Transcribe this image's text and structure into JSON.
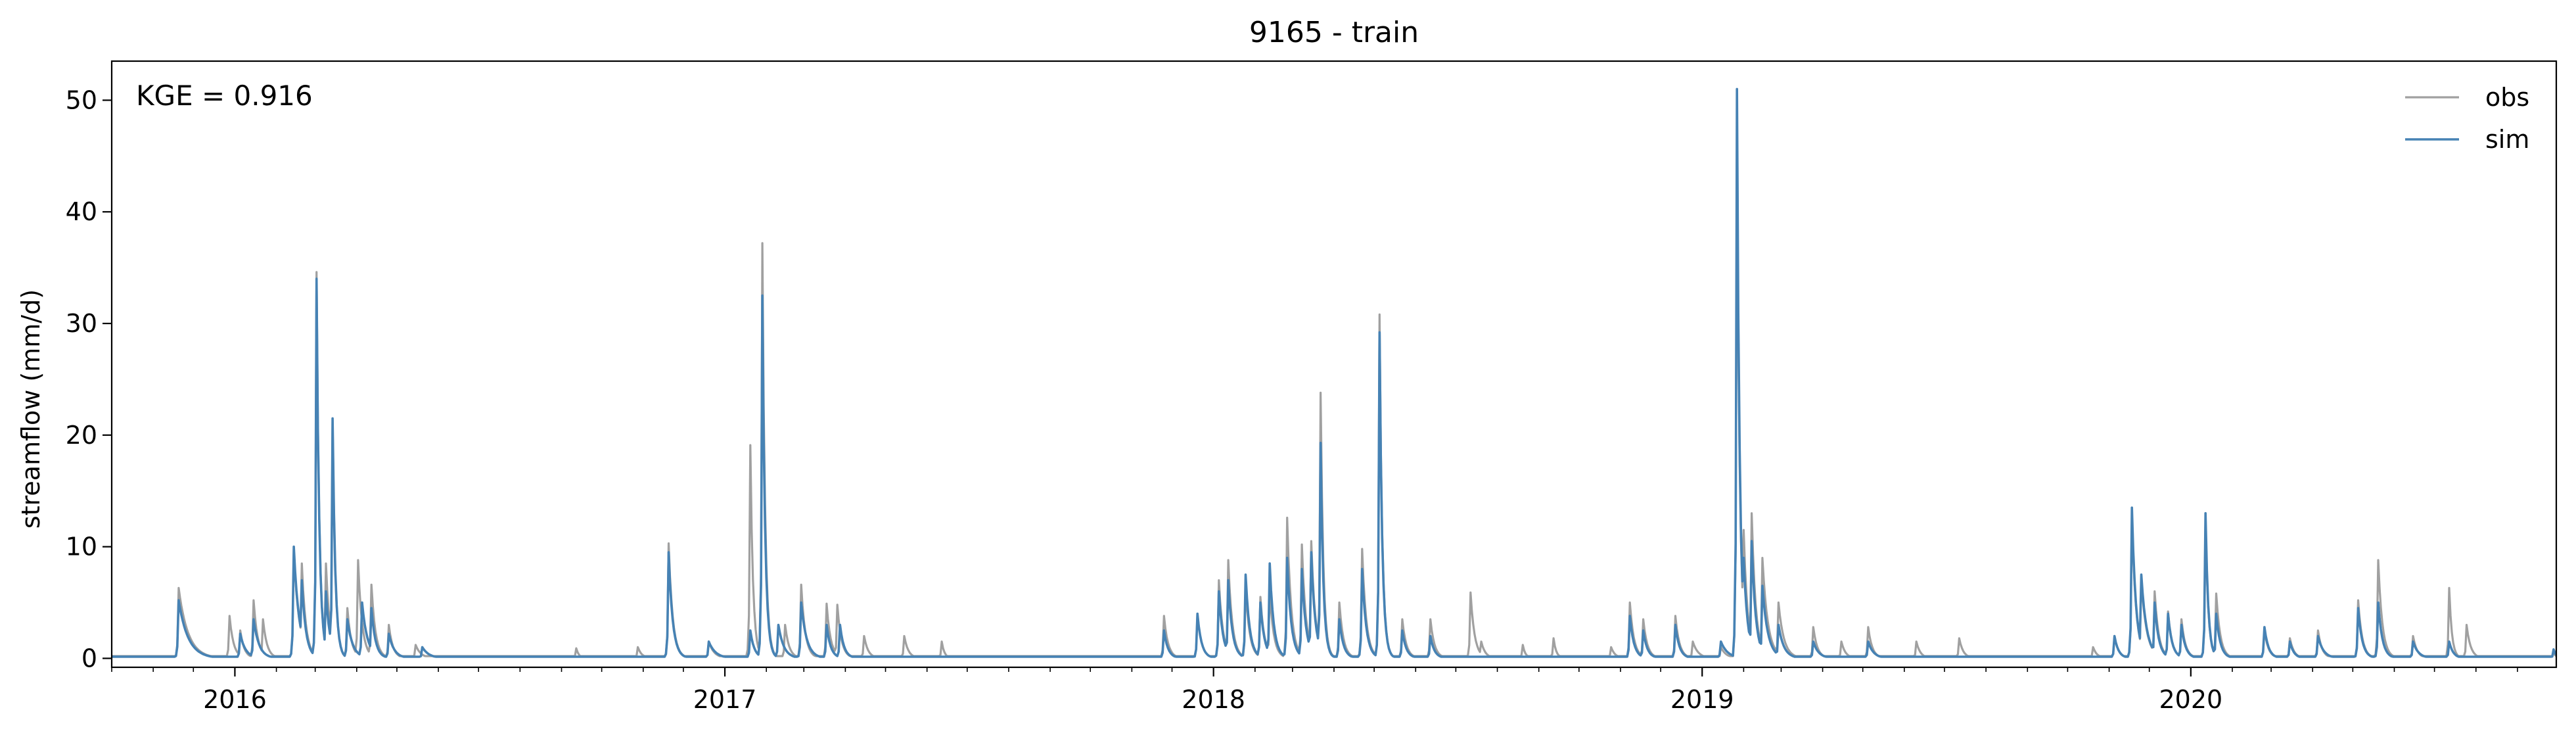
{
  "chart_data": {
    "type": "line",
    "title": "9165 - train",
    "xlabel": "",
    "ylabel": "streamflow (mm/d)",
    "annotation": "KGE = 0.916",
    "x_range": [
      "2015-10-01",
      "2020-09-30"
    ],
    "ylim": [
      -0.8,
      53.5
    ],
    "x_ticks": [
      "2016",
      "2017",
      "2018",
      "2019",
      "2020"
    ],
    "y_ticks": [
      "0",
      "10",
      "20",
      "30",
      "40",
      "50"
    ],
    "legend_position": "upper right",
    "grid": false,
    "series": [
      {
        "name": "obs",
        "color": "#a0a0a0",
        "baseline": 0.2,
        "peaks": [
          [
            "2015-11-20",
            6.3,
            7
          ],
          [
            "2015-12-28",
            3.8,
            3
          ],
          [
            "2016-01-05",
            2.5,
            3
          ],
          [
            "2016-01-15",
            5.2,
            3
          ],
          [
            "2016-01-22",
            3.5,
            3
          ],
          [
            "2016-02-14",
            9.6,
            4
          ],
          [
            "2016-02-20",
            8.5,
            3
          ],
          [
            "2016-03-02",
            34.6,
            2
          ],
          [
            "2016-03-09",
            8.5,
            3
          ],
          [
            "2016-03-14",
            21.2,
            2
          ],
          [
            "2016-03-25",
            4.5,
            3
          ],
          [
            "2016-04-02",
            8.8,
            3
          ],
          [
            "2016-04-12",
            6.6,
            3
          ],
          [
            "2016-04-25",
            3.0,
            3
          ],
          [
            "2016-05-15",
            1.2,
            4
          ],
          [
            "2016-09-12",
            0.9,
            2
          ],
          [
            "2016-10-28",
            1.0,
            3
          ],
          [
            "2016-11-20",
            10.3,
            3
          ],
          [
            "2016-12-20",
            1.5,
            4
          ],
          [
            "2017-01-20",
            19.1,
            2
          ],
          [
            "2017-01-29",
            37.2,
            2
          ],
          [
            "2017-02-15",
            3.0,
            3
          ],
          [
            "2017-02-27",
            6.6,
            3
          ],
          [
            "2017-03-18",
            4.9,
            3
          ],
          [
            "2017-03-26",
            4.8,
            3
          ],
          [
            "2017-04-15",
            2.0,
            3
          ],
          [
            "2017-05-15",
            2.0,
            3
          ],
          [
            "2017-06-12",
            1.5,
            2
          ],
          [
            "2017-11-25",
            3.8,
            3
          ],
          [
            "2017-12-20",
            4.0,
            3
          ],
          [
            "2018-01-05",
            7.0,
            3
          ],
          [
            "2018-01-12",
            8.8,
            3
          ],
          [
            "2018-01-25",
            6.3,
            3
          ],
          [
            "2018-02-05",
            5.5,
            3
          ],
          [
            "2018-02-12",
            6.0,
            3
          ],
          [
            "2018-02-25",
            12.6,
            3
          ],
          [
            "2018-03-08",
            10.2,
            3
          ],
          [
            "2018-03-15",
            10.5,
            3
          ],
          [
            "2018-03-22",
            23.8,
            2
          ],
          [
            "2018-04-05",
            5.0,
            3
          ],
          [
            "2018-04-22",
            9.8,
            3
          ],
          [
            "2018-05-05",
            30.8,
            2
          ],
          [
            "2018-05-22",
            3.5,
            3
          ],
          [
            "2018-06-12",
            3.5,
            3
          ],
          [
            "2018-07-12",
            5.9,
            3
          ],
          [
            "2018-07-20",
            1.5,
            3
          ],
          [
            "2018-08-20",
            1.2,
            2
          ],
          [
            "2018-09-12",
            1.8,
            2
          ],
          [
            "2018-10-25",
            1.0,
            3
          ],
          [
            "2018-11-08",
            5.0,
            3
          ],
          [
            "2018-11-18",
            3.5,
            3
          ],
          [
            "2018-12-12",
            3.8,
            3
          ],
          [
            "2018-12-25",
            1.5,
            4
          ],
          [
            "2019-01-15",
            1.0,
            4
          ],
          [
            "2019-01-27",
            47.0,
            2
          ],
          [
            "2019-02-01",
            11.5,
            3
          ],
          [
            "2019-02-07",
            13.0,
            3
          ],
          [
            "2019-02-15",
            9.0,
            4
          ],
          [
            "2019-02-27",
            5.0,
            4
          ],
          [
            "2019-03-25",
            2.8,
            3
          ],
          [
            "2019-04-15",
            1.5,
            3
          ],
          [
            "2019-05-05",
            2.8,
            3
          ],
          [
            "2019-06-10",
            1.5,
            3
          ],
          [
            "2019-07-12",
            1.8,
            3
          ],
          [
            "2019-10-20",
            1.0,
            3
          ],
          [
            "2019-11-05",
            2.0,
            3
          ],
          [
            "2019-11-18",
            12.8,
            3
          ],
          [
            "2019-11-25",
            7.0,
            4
          ],
          [
            "2019-12-05",
            6.0,
            3
          ],
          [
            "2019-12-15",
            4.2,
            3
          ],
          [
            "2019-12-25",
            3.5,
            3
          ],
          [
            "2020-01-12",
            12.5,
            2
          ],
          [
            "2020-01-20",
            5.8,
            3
          ],
          [
            "2020-02-25",
            2.5,
            3
          ],
          [
            "2020-03-15",
            1.8,
            3
          ],
          [
            "2020-04-05",
            2.5,
            3
          ],
          [
            "2020-05-05",
            5.2,
            3
          ],
          [
            "2020-05-20",
            8.8,
            3
          ],
          [
            "2020-06-15",
            2.0,
            3
          ],
          [
            "2020-07-12",
            6.3,
            2
          ],
          [
            "2020-07-25",
            3.0,
            3
          ],
          [
            "2020-09-28",
            0.5,
            2
          ]
        ]
      },
      {
        "name": "sim",
        "color": "#4682b4",
        "baseline": 0.15,
        "peaks": [
          [
            "2015-11-20",
            5.2,
            7
          ],
          [
            "2016-01-05",
            2.2,
            4
          ],
          [
            "2016-01-15",
            3.5,
            4
          ],
          [
            "2016-02-14",
            10.0,
            4
          ],
          [
            "2016-02-20",
            7.0,
            3
          ],
          [
            "2016-03-02",
            34.0,
            2
          ],
          [
            "2016-03-09",
            6.0,
            3
          ],
          [
            "2016-03-14",
            21.5,
            2
          ],
          [
            "2016-03-25",
            3.5,
            4
          ],
          [
            "2016-04-05",
            5.0,
            4
          ],
          [
            "2016-04-12",
            4.5,
            3
          ],
          [
            "2016-04-25",
            2.2,
            4
          ],
          [
            "2016-05-20",
            1.0,
            5
          ],
          [
            "2016-11-20",
            9.5,
            3
          ],
          [
            "2016-12-20",
            1.5,
            5
          ],
          [
            "2017-01-20",
            2.5,
            3
          ],
          [
            "2017-01-29",
            32.5,
            2
          ],
          [
            "2017-02-10",
            3.0,
            4
          ],
          [
            "2017-02-27",
            5.0,
            4
          ],
          [
            "2017-03-18",
            3.0,
            3
          ],
          [
            "2017-03-28",
            3.0,
            3
          ],
          [
            "2017-11-25",
            2.5,
            3
          ],
          [
            "2017-12-20",
            4.0,
            3
          ],
          [
            "2018-01-05",
            6.0,
            3
          ],
          [
            "2018-01-12",
            7.0,
            3
          ],
          [
            "2018-01-25",
            7.5,
            3
          ],
          [
            "2018-02-05",
            5.0,
            3
          ],
          [
            "2018-02-12",
            8.5,
            3
          ],
          [
            "2018-02-25",
            9.0,
            3
          ],
          [
            "2018-03-08",
            8.0,
            3
          ],
          [
            "2018-03-15",
            9.5,
            3
          ],
          [
            "2018-03-22",
            19.3,
            2
          ],
          [
            "2018-04-05",
            3.5,
            3
          ],
          [
            "2018-04-22",
            8.0,
            3
          ],
          [
            "2018-05-05",
            29.2,
            2
          ],
          [
            "2018-05-22",
            2.5,
            3
          ],
          [
            "2018-06-12",
            2.0,
            3
          ],
          [
            "2018-11-08",
            3.8,
            3
          ],
          [
            "2018-11-18",
            2.5,
            3
          ],
          [
            "2018-12-12",
            3.0,
            3
          ],
          [
            "2019-01-15",
            1.5,
            5
          ],
          [
            "2019-01-27",
            51.0,
            2
          ],
          [
            "2019-02-01",
            9.0,
            3
          ],
          [
            "2019-02-07",
            10.5,
            3
          ],
          [
            "2019-02-15",
            6.5,
            4
          ],
          [
            "2019-02-27",
            3.0,
            4
          ],
          [
            "2019-03-25",
            1.5,
            4
          ],
          [
            "2019-05-05",
            1.5,
            4
          ],
          [
            "2019-11-05",
            2.0,
            3
          ],
          [
            "2019-11-18",
            13.5,
            3
          ],
          [
            "2019-11-25",
            7.5,
            4
          ],
          [
            "2019-12-05",
            5.0,
            3
          ],
          [
            "2019-12-15",
            4.0,
            3
          ],
          [
            "2019-12-25",
            3.0,
            3
          ],
          [
            "2020-01-12",
            13.0,
            2
          ],
          [
            "2020-01-20",
            4.0,
            3
          ],
          [
            "2020-02-25",
            2.8,
            3
          ],
          [
            "2020-03-15",
            1.5,
            3
          ],
          [
            "2020-04-05",
            2.0,
            4
          ],
          [
            "2020-05-05",
            4.5,
            3
          ],
          [
            "2020-05-20",
            5.0,
            3
          ],
          [
            "2020-06-15",
            1.5,
            4
          ],
          [
            "2020-07-12",
            1.5,
            3
          ],
          [
            "2020-09-28",
            0.8,
            2
          ]
        ]
      }
    ]
  }
}
